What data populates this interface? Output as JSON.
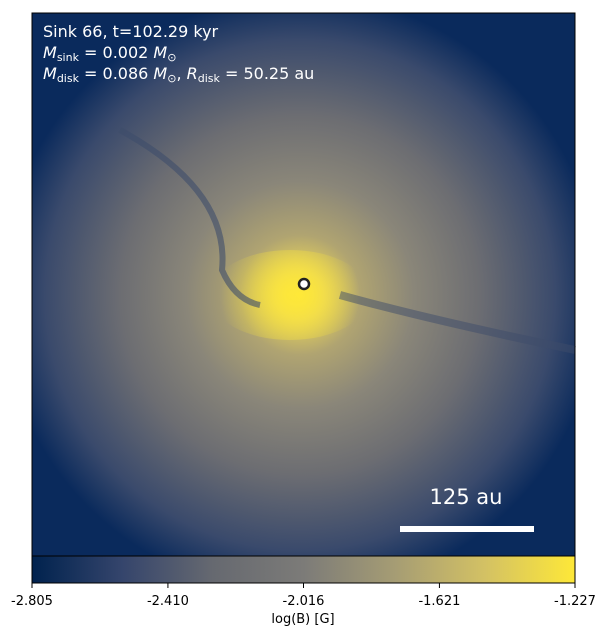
{
  "chart_data": {
    "type": "image",
    "annotations": [
      [
        {
          "text": "Sink 66, t=102.29 kyr",
          "style": "normal"
        }
      ],
      [
        {
          "text": "M",
          "style": "italic"
        },
        {
          "text": "sink",
          "style": "sub"
        },
        {
          "text": " = 0.002 ",
          "style": "normal"
        },
        {
          "text": "M",
          "style": "italic"
        },
        {
          "text": "⊙",
          "style": "sub"
        }
      ],
      [
        {
          "text": "M",
          "style": "italic"
        },
        {
          "text": "disk",
          "style": "sub"
        },
        {
          "text": " = 0.086 ",
          "style": "normal"
        },
        {
          "text": "M",
          "style": "italic"
        },
        {
          "text": "⊙",
          "style": "sub"
        },
        {
          "text": ", ",
          "style": "normal"
        },
        {
          "text": "R",
          "style": "italic"
        },
        {
          "text": "disk",
          "style": "sub"
        },
        {
          "text": " = 50.25 au",
          "style": "normal"
        }
      ]
    ],
    "scale_bar": "125 au",
    "colorbar": {
      "label": "log(B) [G]",
      "lim": [
        -2.805,
        -1.227
      ],
      "ticks": [
        -2.805,
        {
          "value": -2.41,
          "label": "-2.410"
        },
        -2.016,
        -1.621,
        -1.227
      ],
      "colormap": [
        "#00224e",
        "#35456c",
        "#666970",
        "#7c7b78",
        "#a59c74",
        "#d3c164",
        "#fee838"
      ]
    }
  }
}
